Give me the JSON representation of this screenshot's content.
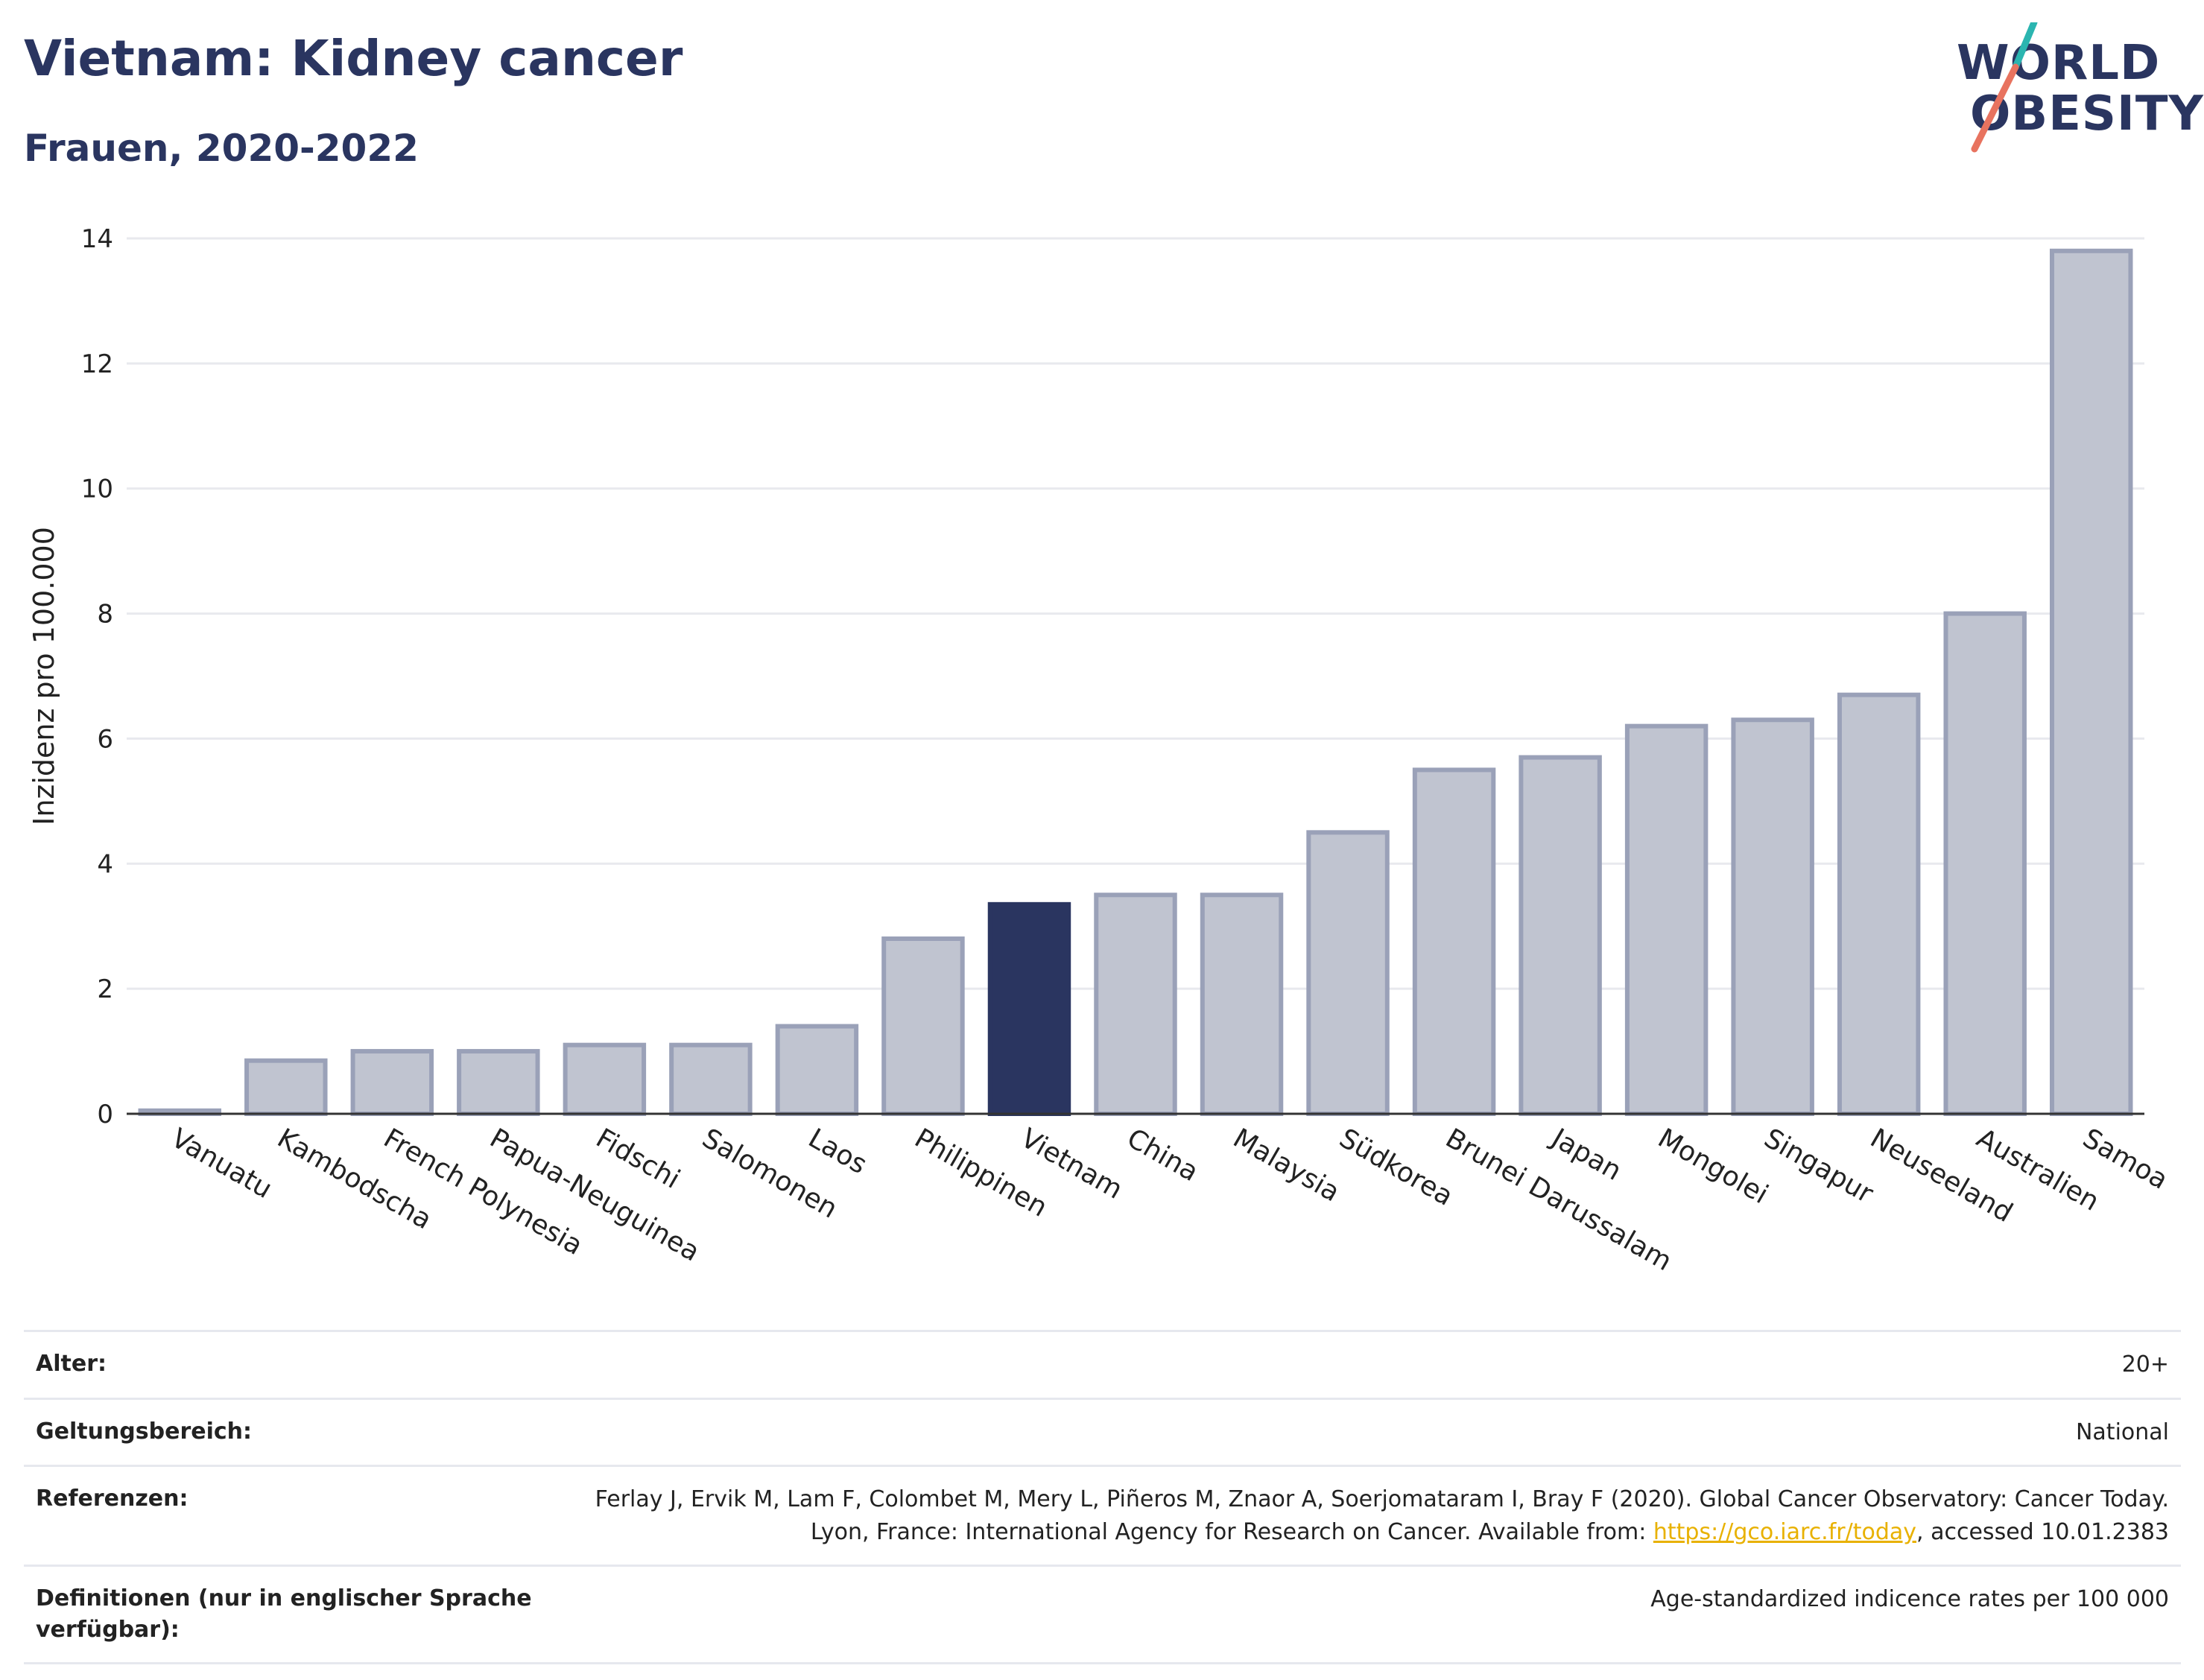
{
  "header": {
    "title": "Vietnam: Kidney cancer",
    "subtitle": "Frauen, 2020-2022"
  },
  "logo": {
    "line1": "WORLD",
    "line2": "OBESITY",
    "colors": {
      "text": "#2a3560",
      "teal": "#2bb5b0",
      "coral": "#e8735f"
    }
  },
  "chart_data": {
    "type": "bar",
    "title": "",
    "xlabel": "",
    "ylabel": "Inzidenz pro 100.000",
    "ylim": [
      0,
      14
    ],
    "yticks": [
      0,
      2,
      4,
      6,
      8,
      10,
      12,
      14
    ],
    "grid": true,
    "highlight": "Vietnam",
    "colors": {
      "bar": "#c0c4d0",
      "bar_border": "#9aa1b8",
      "highlight": "#2a3560",
      "grid": "#e8e9ee",
      "axis": "#333333"
    },
    "categories": [
      "Vanuatu",
      "Kambodscha",
      "French Polynesia",
      "Papua-Neuguinea",
      "Fidschi",
      "Salomonen",
      "Laos",
      "Philippinen",
      "Vietnam",
      "China",
      "Malaysia",
      "Südkorea",
      "Brunei Darussalam",
      "Japan",
      "Mongolei",
      "Singapur",
      "Neuseeland",
      "Australien",
      "Samoa"
    ],
    "values": [
      0.05,
      0.85,
      1.0,
      1.0,
      1.1,
      1.1,
      1.4,
      2.8,
      3.35,
      3.5,
      3.5,
      4.5,
      5.5,
      5.7,
      6.2,
      6.3,
      6.7,
      8.0,
      13.8
    ]
  },
  "meta": {
    "rows": [
      {
        "key": "Alter:",
        "value": "20+"
      },
      {
        "key": "Geltungsbereich:",
        "value": "National"
      },
      {
        "key": "Referenzen:",
        "value_pre": "Ferlay J, Ervik M, Lam F, Colombet M, Mery L, Piñeros M, Znaor A, Soerjomataram I, Bray F (2020). Global Cancer Observatory: Cancer Today. Lyon, France: International Agency for Research on Cancer. Available from: ",
        "link": "https://gco.iarc.fr/today",
        "value_post": ", accessed 10.01.2383"
      },
      {
        "key": "Definitionen (nur in englischer Sprache verfügbar):",
        "value": "Age-standardized indicence rates per 100 000"
      }
    ]
  }
}
